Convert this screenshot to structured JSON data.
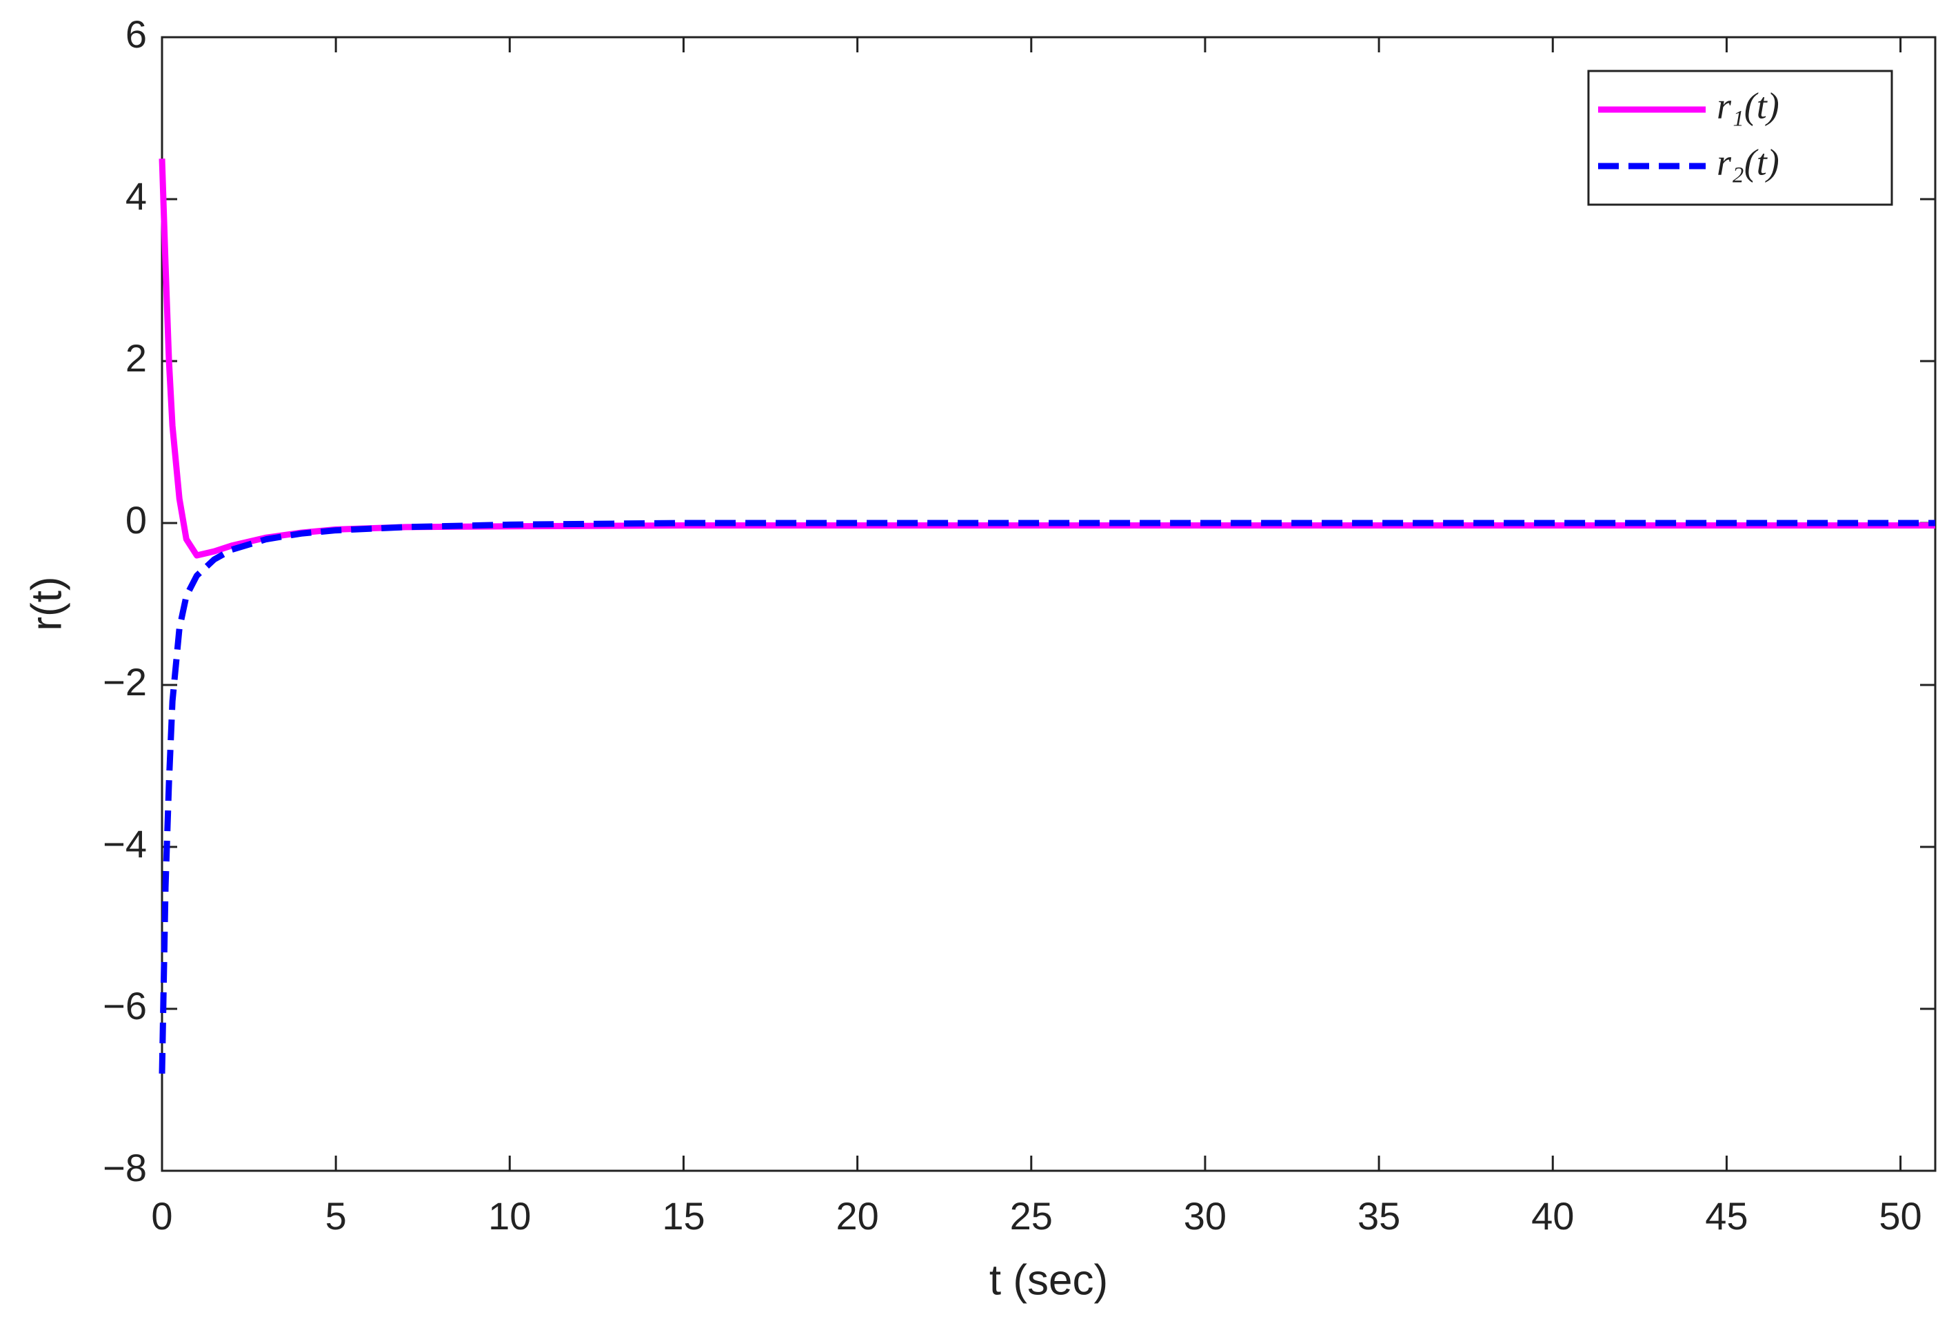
{
  "chart_data": {
    "type": "line",
    "xlabel": "t (sec)",
    "ylabel": "r(t)",
    "x": [
      0,
      0.1,
      0.2,
      0.3,
      0.5,
      0.7,
      1,
      1.5,
      2,
      3,
      4,
      5,
      7,
      10,
      15,
      20,
      30,
      40,
      51
    ],
    "series": [
      {
        "name": "r₁(t)",
        "color": "#ff00ff",
        "dash": "solid",
        "values": [
          4.5,
          3.2,
          2.0,
          1.2,
          0.3,
          -0.2,
          -0.4,
          -0.35,
          -0.28,
          -0.18,
          -0.12,
          -0.08,
          -0.05,
          -0.04,
          -0.03,
          -0.03,
          -0.03,
          -0.03,
          -0.03
        ]
      },
      {
        "name": "r₂(t)",
        "color": "#0000ff",
        "dash": "dashed",
        "values": [
          -6.8,
          -4.5,
          -3.2,
          -2.2,
          -1.3,
          -0.9,
          -0.65,
          -0.45,
          -0.33,
          -0.2,
          -0.13,
          -0.09,
          -0.05,
          -0.02,
          0,
          0,
          0,
          0,
          0
        ]
      }
    ],
    "xlim": [
      0,
      51
    ],
    "xticks": [
      0,
      5,
      10,
      15,
      20,
      25,
      30,
      35,
      40,
      45,
      50
    ],
    "ylim": [
      -8,
      6
    ],
    "yticks": [
      {
        "value": -8,
        "label": "−8"
      },
      {
        "value": -6,
        "label": "−6"
      },
      {
        "value": -4,
        "label": "−4"
      },
      {
        "value": -2,
        "label": "−2"
      },
      0,
      2,
      4,
      6
    ],
    "legend": "upper right",
    "grid": false
  }
}
